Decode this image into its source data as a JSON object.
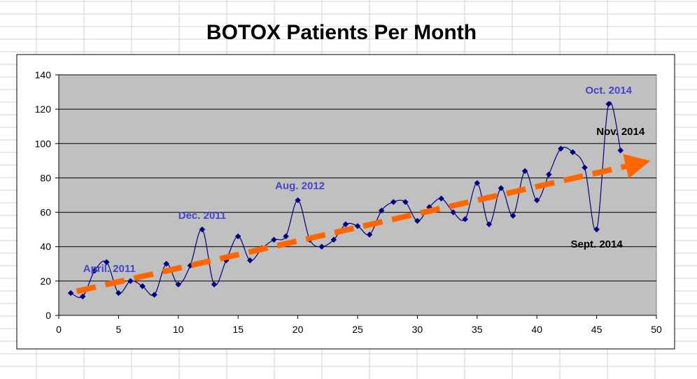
{
  "chart_data": {
    "type": "line",
    "title": "BOTOX Patients Per Month",
    "xlabel": "",
    "ylabel": "",
    "xlim": [
      0,
      50
    ],
    "ylim": [
      0,
      140
    ],
    "x_ticks": [
      0,
      5,
      10,
      15,
      20,
      25,
      30,
      35,
      40,
      45,
      50
    ],
    "y_ticks": [
      0,
      20,
      40,
      60,
      80,
      100,
      120,
      140
    ],
    "grid": "horizontal",
    "legend": "none",
    "plot_background": "#c0c0c0",
    "series": [
      {
        "color": "#000080",
        "x": [
          1,
          2,
          3,
          4,
          5,
          6,
          7,
          8,
          9,
          10,
          11,
          12,
          13,
          14,
          15,
          16,
          17,
          18,
          19,
          20,
          21,
          22,
          23,
          24,
          25,
          26,
          27,
          28,
          29,
          30,
          31,
          32,
          33,
          34,
          35,
          36,
          37,
          38,
          39,
          40,
          41,
          42,
          43,
          44,
          45,
          46,
          47
        ],
        "values": [
          13,
          11,
          26,
          31,
          13,
          20,
          17,
          12,
          30,
          18,
          29,
          50,
          18,
          32,
          46,
          32,
          39,
          44,
          46,
          67,
          44,
          40,
          44,
          53,
          52,
          47,
          61,
          66,
          66,
          55,
          63,
          68,
          60,
          56,
          77,
          53,
          74,
          58,
          84,
          67,
          82,
          97,
          95,
          86,
          50,
          123,
          96
        ]
      }
    ],
    "trend_arrow": {
      "color": "#ff6600",
      "x_start": 1.5,
      "y_start": 14,
      "x_end": 49.5,
      "y_end": 90
    },
    "annotations": [
      {
        "text": "April. 2011",
        "x": 4,
        "y": 31,
        "color": "#4444cc"
      },
      {
        "text": "Dec. 2011",
        "x": 12,
        "y": 50,
        "color": "#4444cc"
      },
      {
        "text": "Aug. 2012",
        "x": 20,
        "y": 67,
        "color": "#4444cc"
      },
      {
        "text": "Oct. 2014",
        "x": 46,
        "y": 123,
        "color": "#4444cc"
      },
      {
        "text": "Nov. 2014",
        "x": 47,
        "y": 96,
        "color": "#000000"
      },
      {
        "text": "Sept. 2014",
        "x": 45,
        "y": 50,
        "color": "#000000"
      }
    ]
  }
}
